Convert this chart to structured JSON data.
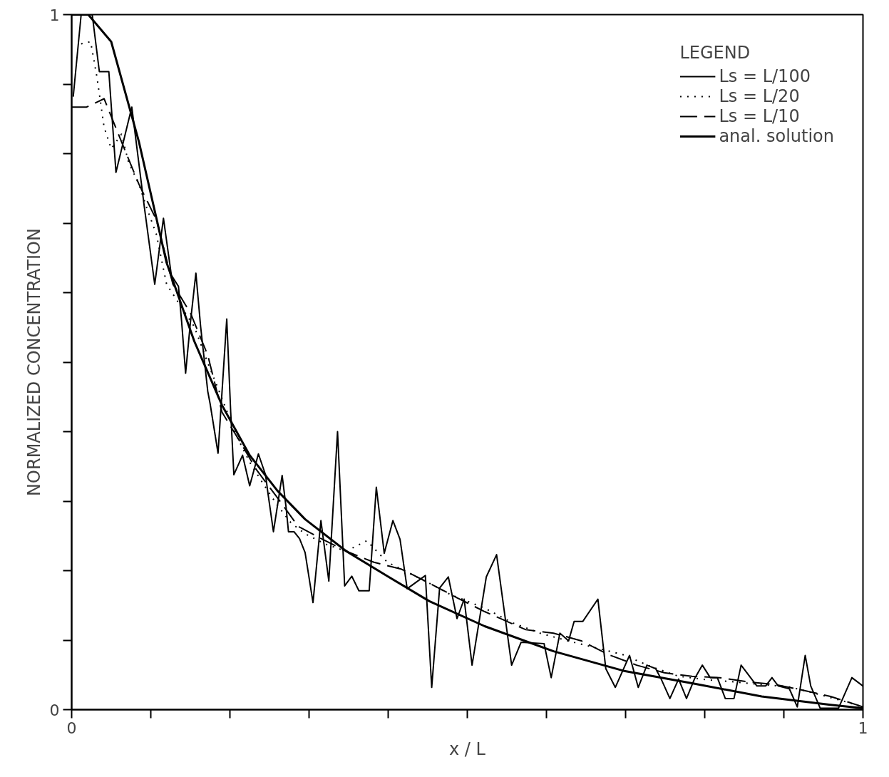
{
  "chart_data": {
    "type": "line",
    "xlabel": "x / L",
    "ylabel": "NORMALIZED CONCENTRATION",
    "legend_title": "LEGEND",
    "legend": "top right",
    "grid": false,
    "xlim": [
      0,
      1
    ],
    "ylim": [
      0,
      1
    ],
    "xticks": [
      {
        "value": 0,
        "label": "0"
      },
      {
        "value": 0.1,
        "label": null
      },
      {
        "value": 0.2,
        "label": null
      },
      {
        "value": 0.3,
        "label": null
      },
      {
        "value": 0.4,
        "label": null
      },
      {
        "value": 0.5,
        "label": null
      },
      {
        "value": 0.6,
        "label": null
      },
      {
        "value": 0.7,
        "label": null
      },
      {
        "value": 0.8,
        "label": null
      },
      {
        "value": 0.9,
        "label": null
      },
      {
        "value": 1,
        "label": "1"
      }
    ],
    "yticks": [
      {
        "value": 0,
        "label": "0"
      },
      {
        "value": 0.1,
        "label": null
      },
      {
        "value": 0.2,
        "label": null
      },
      {
        "value": 0.3,
        "label": null
      },
      {
        "value": 0.4,
        "label": null
      },
      {
        "value": 0.5,
        "label": null
      },
      {
        "value": 0.6,
        "label": null
      },
      {
        "value": 0.7,
        "label": null
      },
      {
        "value": 0.8,
        "label": null
      },
      {
        "value": 0.9,
        "label": null
      },
      {
        "value": 1,
        "label": "1"
      }
    ],
    "series": [
      {
        "name": "Ls = L/100",
        "color": "#000000",
        "line_style": "solid",
        "x": [
          0.002,
          0.012,
          0.026,
          0.035,
          0.047,
          0.056,
          0.076,
          0.092,
          0.105,
          0.116,
          0.126,
          0.135,
          0.139,
          0.144,
          0.15,
          0.157,
          0.163,
          0.172,
          0.175,
          0.185,
          0.196,
          0.201,
          0.205,
          0.216,
          0.225,
          0.236,
          0.245,
          0.248,
          0.255,
          0.266,
          0.271,
          0.274,
          0.281,
          0.288,
          0.295,
          0.305,
          0.315,
          0.325,
          0.336,
          0.345,
          0.354,
          0.363,
          0.376,
          0.385,
          0.395,
          0.406,
          0.415,
          0.424,
          0.447,
          0.455,
          0.465,
          0.476,
          0.487,
          0.496,
          0.506,
          0.524,
          0.537,
          0.556,
          0.568,
          0.597,
          0.606,
          0.617,
          0.628,
          0.635,
          0.646,
          0.665,
          0.675,
          0.687,
          0.705,
          0.716,
          0.727,
          0.738,
          0.745,
          0.756,
          0.767,
          0.777,
          0.787,
          0.797,
          0.807,
          0.816,
          0.826,
          0.837,
          0.846,
          0.866,
          0.877,
          0.885,
          0.893,
          0.907,
          0.917,
          0.927,
          0.934,
          0.946,
          0.969,
          0.986,
          1.0
        ],
        "values": [
          0.882,
          1.0,
          1.0,
          0.918,
          0.918,
          0.773,
          0.867,
          0.722,
          0.612,
          0.707,
          0.625,
          0.609,
          0.558,
          0.484,
          0.556,
          0.628,
          0.551,
          0.458,
          0.44,
          0.369,
          0.562,
          0.428,
          0.338,
          0.366,
          0.322,
          0.368,
          0.338,
          0.312,
          0.256,
          0.337,
          0.291,
          0.256,
          0.256,
          0.246,
          0.226,
          0.154,
          0.272,
          0.185,
          0.4,
          0.178,
          0.192,
          0.171,
          0.171,
          0.32,
          0.225,
          0.272,
          0.245,
          0.174,
          0.193,
          0.032,
          0.175,
          0.191,
          0.131,
          0.159,
          0.064,
          0.191,
          0.223,
          0.064,
          0.097,
          0.095,
          0.046,
          0.11,
          0.099,
          0.127,
          0.127,
          0.159,
          0.059,
          0.032,
          0.078,
          0.032,
          0.064,
          0.059,
          0.044,
          0.016,
          0.044,
          0.016,
          0.044,
          0.064,
          0.046,
          0.046,
          0.016,
          0.016,
          0.064,
          0.034,
          0.034,
          0.046,
          0.034,
          0.03,
          0.004,
          0.078,
          0.034,
          0.002,
          0.002,
          0.046,
          0.034
        ]
      },
      {
        "name": "Ls = L/20",
        "color": "#000000",
        "line_style": "dotted",
        "x": [
          0.012,
          0.024,
          0.032,
          0.041,
          0.05,
          0.063,
          0.072,
          0.085,
          0.094,
          0.107,
          0.12,
          0.137,
          0.155,
          0.172,
          0.19,
          0.207,
          0.225,
          0.242,
          0.26,
          0.277,
          0.295,
          0.321,
          0.347,
          0.373,
          0.399,
          0.417,
          0.434,
          0.452,
          0.478,
          0.522,
          0.557,
          0.592,
          0.627,
          0.662,
          0.697,
          0.732,
          0.767,
          0.802,
          0.837,
          0.872,
          0.906,
          0.941,
          0.976,
          1.0
        ],
        "values": [
          0.958,
          0.961,
          0.91,
          0.838,
          0.807,
          0.828,
          0.787,
          0.756,
          0.725,
          0.684,
          0.612,
          0.582,
          0.551,
          0.499,
          0.448,
          0.397,
          0.356,
          0.325,
          0.294,
          0.269,
          0.253,
          0.238,
          0.228,
          0.243,
          0.212,
          0.202,
          0.192,
          0.182,
          0.166,
          0.146,
          0.125,
          0.11,
          0.099,
          0.089,
          0.079,
          0.062,
          0.048,
          0.043,
          0.04,
          0.036,
          0.033,
          0.023,
          0.012,
          0.004
        ]
      },
      {
        "name": "Ls = L/10",
        "color": "#000000",
        "line_style": "dashed",
        "x": [
          0,
          0.019,
          0.041,
          0.063,
          0.085,
          0.107,
          0.128,
          0.15,
          0.172,
          0.19,
          0.212,
          0.233,
          0.26,
          0.286,
          0.312,
          0.347,
          0.382,
          0.417,
          0.452,
          0.487,
          0.522,
          0.574,
          0.609,
          0.644,
          0.679,
          0.714,
          0.749,
          0.784,
          0.819,
          0.854,
          0.889,
          0.924,
          0.959,
          1.0
        ],
        "values": [
          0.867,
          0.867,
          0.879,
          0.817,
          0.756,
          0.705,
          0.612,
          0.571,
          0.51,
          0.428,
          0.387,
          0.346,
          0.305,
          0.264,
          0.248,
          0.228,
          0.212,
          0.202,
          0.182,
          0.161,
          0.141,
          0.115,
          0.11,
          0.099,
          0.079,
          0.064,
          0.053,
          0.048,
          0.046,
          0.04,
          0.036,
          0.028,
          0.019,
          0.004
        ]
      },
      {
        "name": "anal. solution",
        "color": "#000000",
        "line_style": "solid",
        "x": [
          0,
          0.021,
          0.05,
          0.085,
          0.12,
          0.155,
          0.19,
          0.225,
          0.26,
          0.295,
          0.347,
          0.399,
          0.452,
          0.522,
          0.609,
          0.697,
          0.784,
          0.872,
          0.959,
          1.0
        ],
        "values": [
          1.0,
          1.0,
          0.961,
          0.817,
          0.643,
          0.53,
          0.438,
          0.366,
          0.315,
          0.274,
          0.228,
          0.192,
          0.156,
          0.12,
          0.084,
          0.056,
          0.038,
          0.019,
          0.007,
          0.002
        ]
      }
    ]
  }
}
